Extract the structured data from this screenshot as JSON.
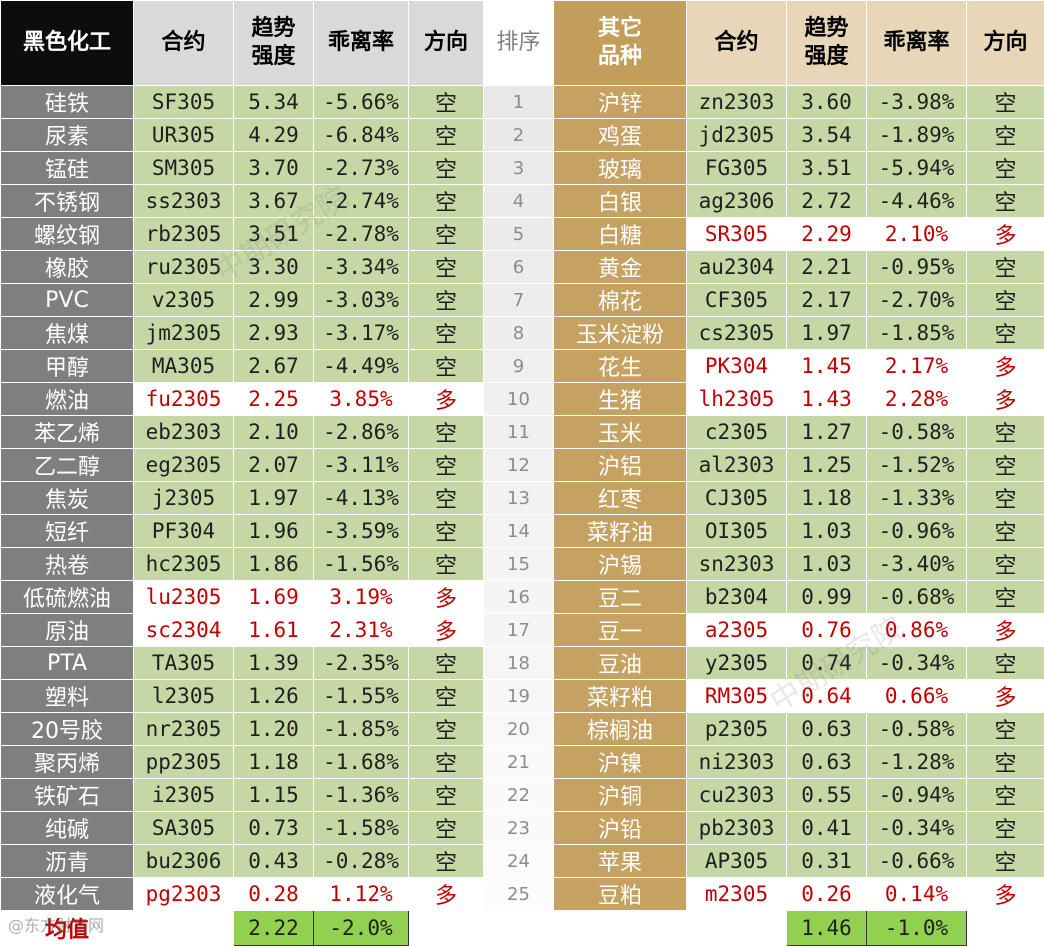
{
  "header": {
    "col1": "黑色化工",
    "col2": "合约",
    "col3": "趋势\n强度",
    "col4": "乖离率",
    "col5": "方向",
    "rank": "排序",
    "col6": "其它\n品种",
    "col7": "合约",
    "col8": "趋势\n强度",
    "col9": "乖离率",
    "col10": "方向"
  },
  "colors": {
    "short": "#c4d7a5",
    "long": "#ffffff",
    "long_text": "#c00000",
    "avg": "#92d050"
  },
  "rows": [
    {
      "rank": "1",
      "n1": "硅铁",
      "c1": "SF305",
      "t1": "5.34",
      "b1": "-5.66%",
      "d1": "空",
      "s1": "short",
      "n2": "沪锌",
      "c2": "zn2303",
      "t2": "3.60",
      "b2": "-3.98%",
      "d2": "空",
      "s2": "short"
    },
    {
      "rank": "2",
      "n1": "尿素",
      "c1": "UR305",
      "t1": "4.29",
      "b1": "-6.84%",
      "d1": "空",
      "s1": "short",
      "n2": "鸡蛋",
      "c2": "jd2305",
      "t2": "3.54",
      "b2": "-1.89%",
      "d2": "空",
      "s2": "short"
    },
    {
      "rank": "3",
      "n1": "锰硅",
      "c1": "SM305",
      "t1": "3.70",
      "b1": "-2.73%",
      "d1": "空",
      "s1": "short",
      "n2": "玻璃",
      "c2": "FG305",
      "t2": "3.51",
      "b2": "-5.94%",
      "d2": "空",
      "s2": "short"
    },
    {
      "rank": "4",
      "n1": "不锈钢",
      "c1": "ss2303",
      "t1": "3.67",
      "b1": "-2.74%",
      "d1": "空",
      "s1": "short",
      "n2": "白银",
      "c2": "ag2306",
      "t2": "2.72",
      "b2": "-4.46%",
      "d2": "空",
      "s2": "short"
    },
    {
      "rank": "5",
      "n1": "螺纹钢",
      "c1": "rb2305",
      "t1": "3.51",
      "b1": "-2.78%",
      "d1": "空",
      "s1": "short",
      "n2": "白糖",
      "c2": "SR305",
      "t2": "2.29",
      "b2": "2.10%",
      "d2": "多",
      "s2": "long"
    },
    {
      "rank": "6",
      "n1": "橡胶",
      "c1": "ru2305",
      "t1": "3.30",
      "b1": "-3.34%",
      "d1": "空",
      "s1": "short",
      "n2": "黄金",
      "c2": "au2304",
      "t2": "2.21",
      "b2": "-0.95%",
      "d2": "空",
      "s2": "short"
    },
    {
      "rank": "7",
      "n1": "PVC",
      "c1": "v2305",
      "t1": "2.99",
      "b1": "-3.03%",
      "d1": "空",
      "s1": "short",
      "n2": "棉花",
      "c2": "CF305",
      "t2": "2.17",
      "b2": "-2.70%",
      "d2": "空",
      "s2": "short"
    },
    {
      "rank": "8",
      "n1": "焦煤",
      "c1": "jm2305",
      "t1": "2.93",
      "b1": "-3.17%",
      "d1": "空",
      "s1": "short",
      "n2": "玉米淀粉",
      "c2": "cs2305",
      "t2": "1.97",
      "b2": "-1.85%",
      "d2": "空",
      "s2": "short"
    },
    {
      "rank": "9",
      "n1": "甲醇",
      "c1": "MA305",
      "t1": "2.67",
      "b1": "-4.49%",
      "d1": "空",
      "s1": "short",
      "n2": "花生",
      "c2": "PK304",
      "t2": "1.45",
      "b2": "2.17%",
      "d2": "多",
      "s2": "long"
    },
    {
      "rank": "10",
      "n1": "燃油",
      "c1": "fu2305",
      "t1": "2.25",
      "b1": "3.85%",
      "d1": "多",
      "s1": "long",
      "n2": "生猪",
      "c2": "lh2305",
      "t2": "1.43",
      "b2": "2.28%",
      "d2": "多",
      "s2": "long"
    },
    {
      "rank": "11",
      "n1": "苯乙烯",
      "c1": "eb2303",
      "t1": "2.10",
      "b1": "-2.86%",
      "d1": "空",
      "s1": "short",
      "n2": "玉米",
      "c2": "c2305",
      "t2": "1.27",
      "b2": "-0.58%",
      "d2": "空",
      "s2": "short"
    },
    {
      "rank": "12",
      "n1": "乙二醇",
      "c1": "eg2305",
      "t1": "2.07",
      "b1": "-3.11%",
      "d1": "空",
      "s1": "short",
      "n2": "沪铝",
      "c2": "al2303",
      "t2": "1.25",
      "b2": "-1.52%",
      "d2": "空",
      "s2": "short"
    },
    {
      "rank": "13",
      "n1": "焦炭",
      "c1": "j2305",
      "t1": "1.97",
      "b1": "-4.13%",
      "d1": "空",
      "s1": "short",
      "n2": "红枣",
      "c2": "CJ305",
      "t2": "1.18",
      "b2": "-1.33%",
      "d2": "空",
      "s2": "short"
    },
    {
      "rank": "14",
      "n1": "短纤",
      "c1": "PF304",
      "t1": "1.96",
      "b1": "-3.59%",
      "d1": "空",
      "s1": "short",
      "n2": "菜籽油",
      "c2": "OI305",
      "t2": "1.03",
      "b2": "-0.96%",
      "d2": "空",
      "s2": "short"
    },
    {
      "rank": "15",
      "n1": "热卷",
      "c1": "hc2305",
      "t1": "1.86",
      "b1": "-1.56%",
      "d1": "空",
      "s1": "short",
      "n2": "沪锡",
      "c2": "sn2303",
      "t2": "1.03",
      "b2": "-3.40%",
      "d2": "空",
      "s2": "short"
    },
    {
      "rank": "16",
      "n1": "低硫燃油",
      "c1": "lu2305",
      "t1": "1.69",
      "b1": "3.19%",
      "d1": "多",
      "s1": "long",
      "n2": "豆二",
      "c2": "b2304",
      "t2": "0.99",
      "b2": "-0.68%",
      "d2": "空",
      "s2": "short"
    },
    {
      "rank": "17",
      "n1": "原油",
      "c1": "sc2304",
      "t1": "1.61",
      "b1": "2.31%",
      "d1": "多",
      "s1": "long",
      "n2": "豆一",
      "c2": "a2305",
      "t2": "0.76",
      "b2": "0.86%",
      "d2": "多",
      "s2": "long"
    },
    {
      "rank": "18",
      "n1": "PTA",
      "c1": "TA305",
      "t1": "1.39",
      "b1": "-2.35%",
      "d1": "空",
      "s1": "short",
      "n2": "豆油",
      "c2": "y2305",
      "t2": "0.74",
      "b2": "-0.34%",
      "d2": "空",
      "s2": "short"
    },
    {
      "rank": "19",
      "n1": "塑料",
      "c1": "l2305",
      "t1": "1.26",
      "b1": "-1.55%",
      "d1": "空",
      "s1": "short",
      "n2": "菜籽粕",
      "c2": "RM305",
      "t2": "0.64",
      "b2": "0.66%",
      "d2": "多",
      "s2": "long"
    },
    {
      "rank": "20",
      "n1": "20号胶",
      "c1": "nr2305",
      "t1": "1.20",
      "b1": "-1.85%",
      "d1": "空",
      "s1": "short",
      "n2": "棕榈油",
      "c2": "p2305",
      "t2": "0.63",
      "b2": "-0.58%",
      "d2": "空",
      "s2": "short"
    },
    {
      "rank": "21",
      "n1": "聚丙烯",
      "c1": "pp2305",
      "t1": "1.18",
      "b1": "-1.68%",
      "d1": "空",
      "s1": "short",
      "n2": "沪镍",
      "c2": "ni2303",
      "t2": "0.63",
      "b2": "-1.28%",
      "d2": "空",
      "s2": "short"
    },
    {
      "rank": "22",
      "n1": "铁矿石",
      "c1": "i2305",
      "t1": "1.15",
      "b1": "-1.36%",
      "d1": "空",
      "s1": "short",
      "n2": "沪铜",
      "c2": "cu2303",
      "t2": "0.55",
      "b2": "-0.94%",
      "d2": "空",
      "s2": "short"
    },
    {
      "rank": "23",
      "n1": "纯碱",
      "c1": "SA305",
      "t1": "0.73",
      "b1": "-1.58%",
      "d1": "空",
      "s1": "short",
      "n2": "沪铅",
      "c2": "pb2303",
      "t2": "0.41",
      "b2": "-0.34%",
      "d2": "空",
      "s2": "short"
    },
    {
      "rank": "24",
      "n1": "沥青",
      "c1": "bu2306",
      "t1": "0.43",
      "b1": "-0.28%",
      "d1": "空",
      "s1": "short",
      "n2": "苹果",
      "c2": "AP305",
      "t2": "0.31",
      "b2": "-0.66%",
      "d2": "空",
      "s2": "short"
    },
    {
      "rank": "25",
      "n1": "液化气",
      "c1": "pg2303",
      "t1": "0.28",
      "b1": "1.12%",
      "d1": "多",
      "s1": "long",
      "n2": "豆粕",
      "c2": "m2305",
      "t2": "0.26",
      "b2": "0.14%",
      "d2": "多",
      "s2": "long"
    }
  ],
  "footer": {
    "label": "均值",
    "avg_trend_left": "2.22",
    "avg_bias_left": "-2.0%",
    "avg_trend_right": "1.46",
    "avg_bias_right": "-1.0%"
  },
  "watermark": {
    "text1": "中期研究院",
    "text2": "中期研究院",
    "corner": "@东方财富网"
  }
}
